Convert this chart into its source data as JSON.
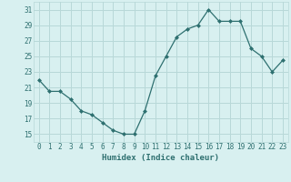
{
  "title": "",
  "xlabel": "Humidex (Indice chaleur)",
  "ylabel": "",
  "x": [
    0,
    1,
    2,
    3,
    4,
    5,
    6,
    7,
    8,
    9,
    10,
    11,
    12,
    13,
    14,
    15,
    16,
    17,
    18,
    19,
    20,
    21,
    22,
    23
  ],
  "y": [
    22,
    20.5,
    20.5,
    19.5,
    18,
    17.5,
    16.5,
    15.5,
    15,
    15,
    18,
    22.5,
    25,
    27.5,
    28.5,
    29,
    31,
    29.5,
    29.5,
    29.5,
    26,
    25,
    23,
    24.5
  ],
  "line_color": "#2e7070",
  "marker": "D",
  "marker_size": 2.0,
  "bg_color": "#d8f0f0",
  "grid_color": "#b8d8d8",
  "ylim": [
    14,
    32
  ],
  "yticks": [
    15,
    17,
    19,
    21,
    23,
    25,
    27,
    29,
    31
  ],
  "xticks": [
    0,
    1,
    2,
    3,
    4,
    5,
    6,
    7,
    8,
    9,
    10,
    11,
    12,
    13,
    14,
    15,
    16,
    17,
    18,
    19,
    20,
    21,
    22,
    23
  ],
  "xlabel_fontsize": 6.5,
  "tick_fontsize": 5.5
}
